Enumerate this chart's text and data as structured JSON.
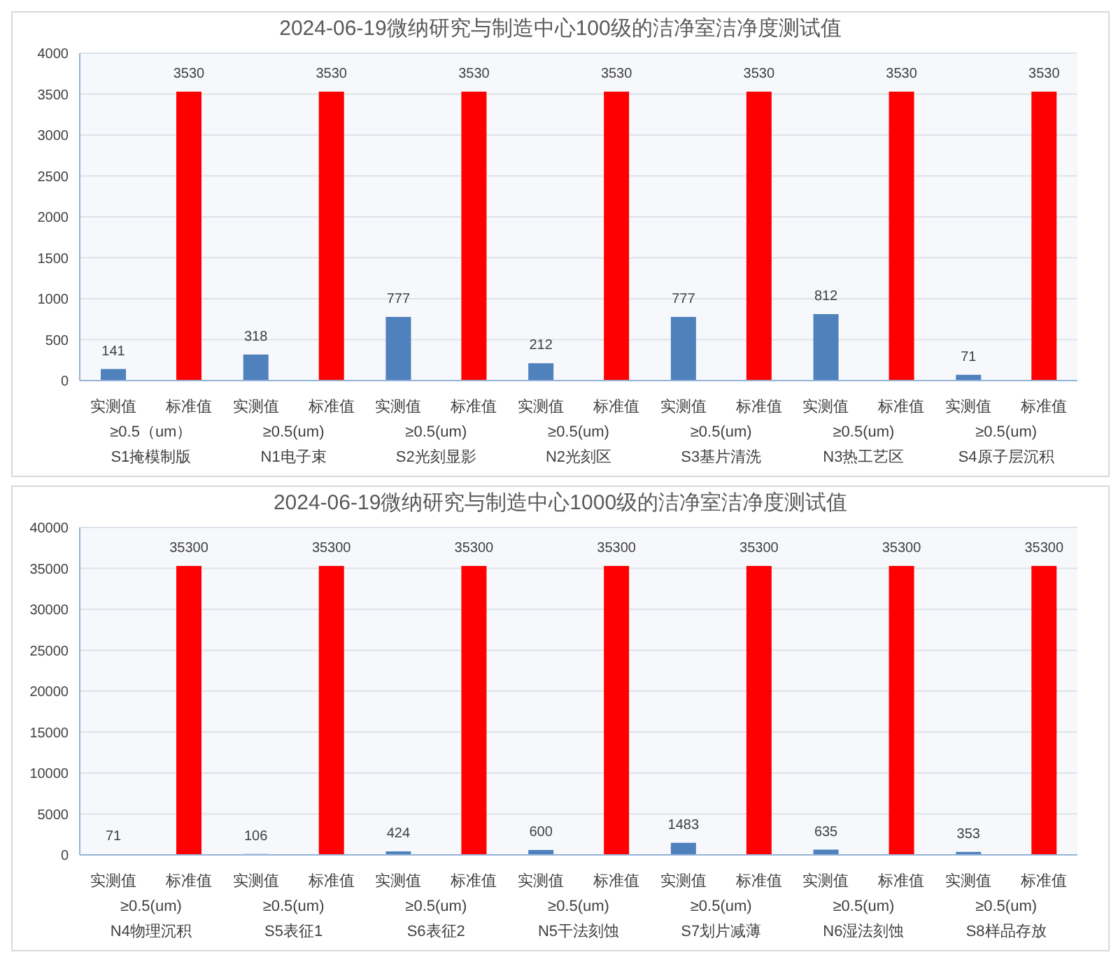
{
  "chart_data": [
    {
      "type": "bar",
      "title": "2024-06-19微纳研究与制造中心100级的洁净室洁净度测试值",
      "categories": [
        "≥0.5（um）\nS1掩模制版",
        "≥0.5(um)\nN1电子束",
        "≥0.5(um)\nS2光刻显影",
        "≥0.5(um)\nN2光刻区",
        "≥0.5(um)\nS3基片清洗",
        "≥0.5(um)\nN3热工艺区",
        "≥0.5(um)\nS4原子层沉积"
      ],
      "series": [
        {
          "name": "实测值",
          "color": "#4f81bd",
          "values": [
            141,
            318,
            777,
            212,
            777,
            812,
            71
          ]
        },
        {
          "name": "标准值",
          "color": "#ff0000",
          "values": [
            3530,
            3530,
            3530,
            3530,
            3530,
            3530,
            3530
          ]
        }
      ],
      "ylim": [
        0,
        4000
      ],
      "yticks": [
        0,
        500,
        1000,
        1500,
        2000,
        2500,
        3000,
        3500,
        4000
      ],
      "grid": "y",
      "legend": false,
      "data_labels": true
    },
    {
      "type": "bar",
      "title": "2024-06-19微纳研究与制造中心1000级的洁净室洁净度测试值",
      "categories": [
        "≥0.5(um)\nN4物理沉积",
        "≥0.5(um)\nS5表征1",
        "≥0.5(um)\nS6表征2",
        "≥0.5(um)\nN5干法刻蚀",
        "≥0.5(um)\nS7划片减薄",
        "≥0.5(um)\nN6湿法刻蚀",
        "≥0.5(um)\nS8样品存放"
      ],
      "series": [
        {
          "name": "实测值",
          "color": "#4f81bd",
          "values": [
            71,
            106,
            424,
            600,
            1483,
            635,
            353
          ]
        },
        {
          "name": "标准值",
          "color": "#ff0000",
          "values": [
            35300,
            35300,
            35300,
            35300,
            35300,
            35300,
            35300
          ]
        }
      ],
      "ylim": [
        0,
        40000
      ],
      "yticks": [
        0,
        5000,
        10000,
        15000,
        20000,
        25000,
        30000,
        35000,
        40000
      ],
      "grid": "y",
      "legend": false,
      "data_labels": true
    }
  ]
}
